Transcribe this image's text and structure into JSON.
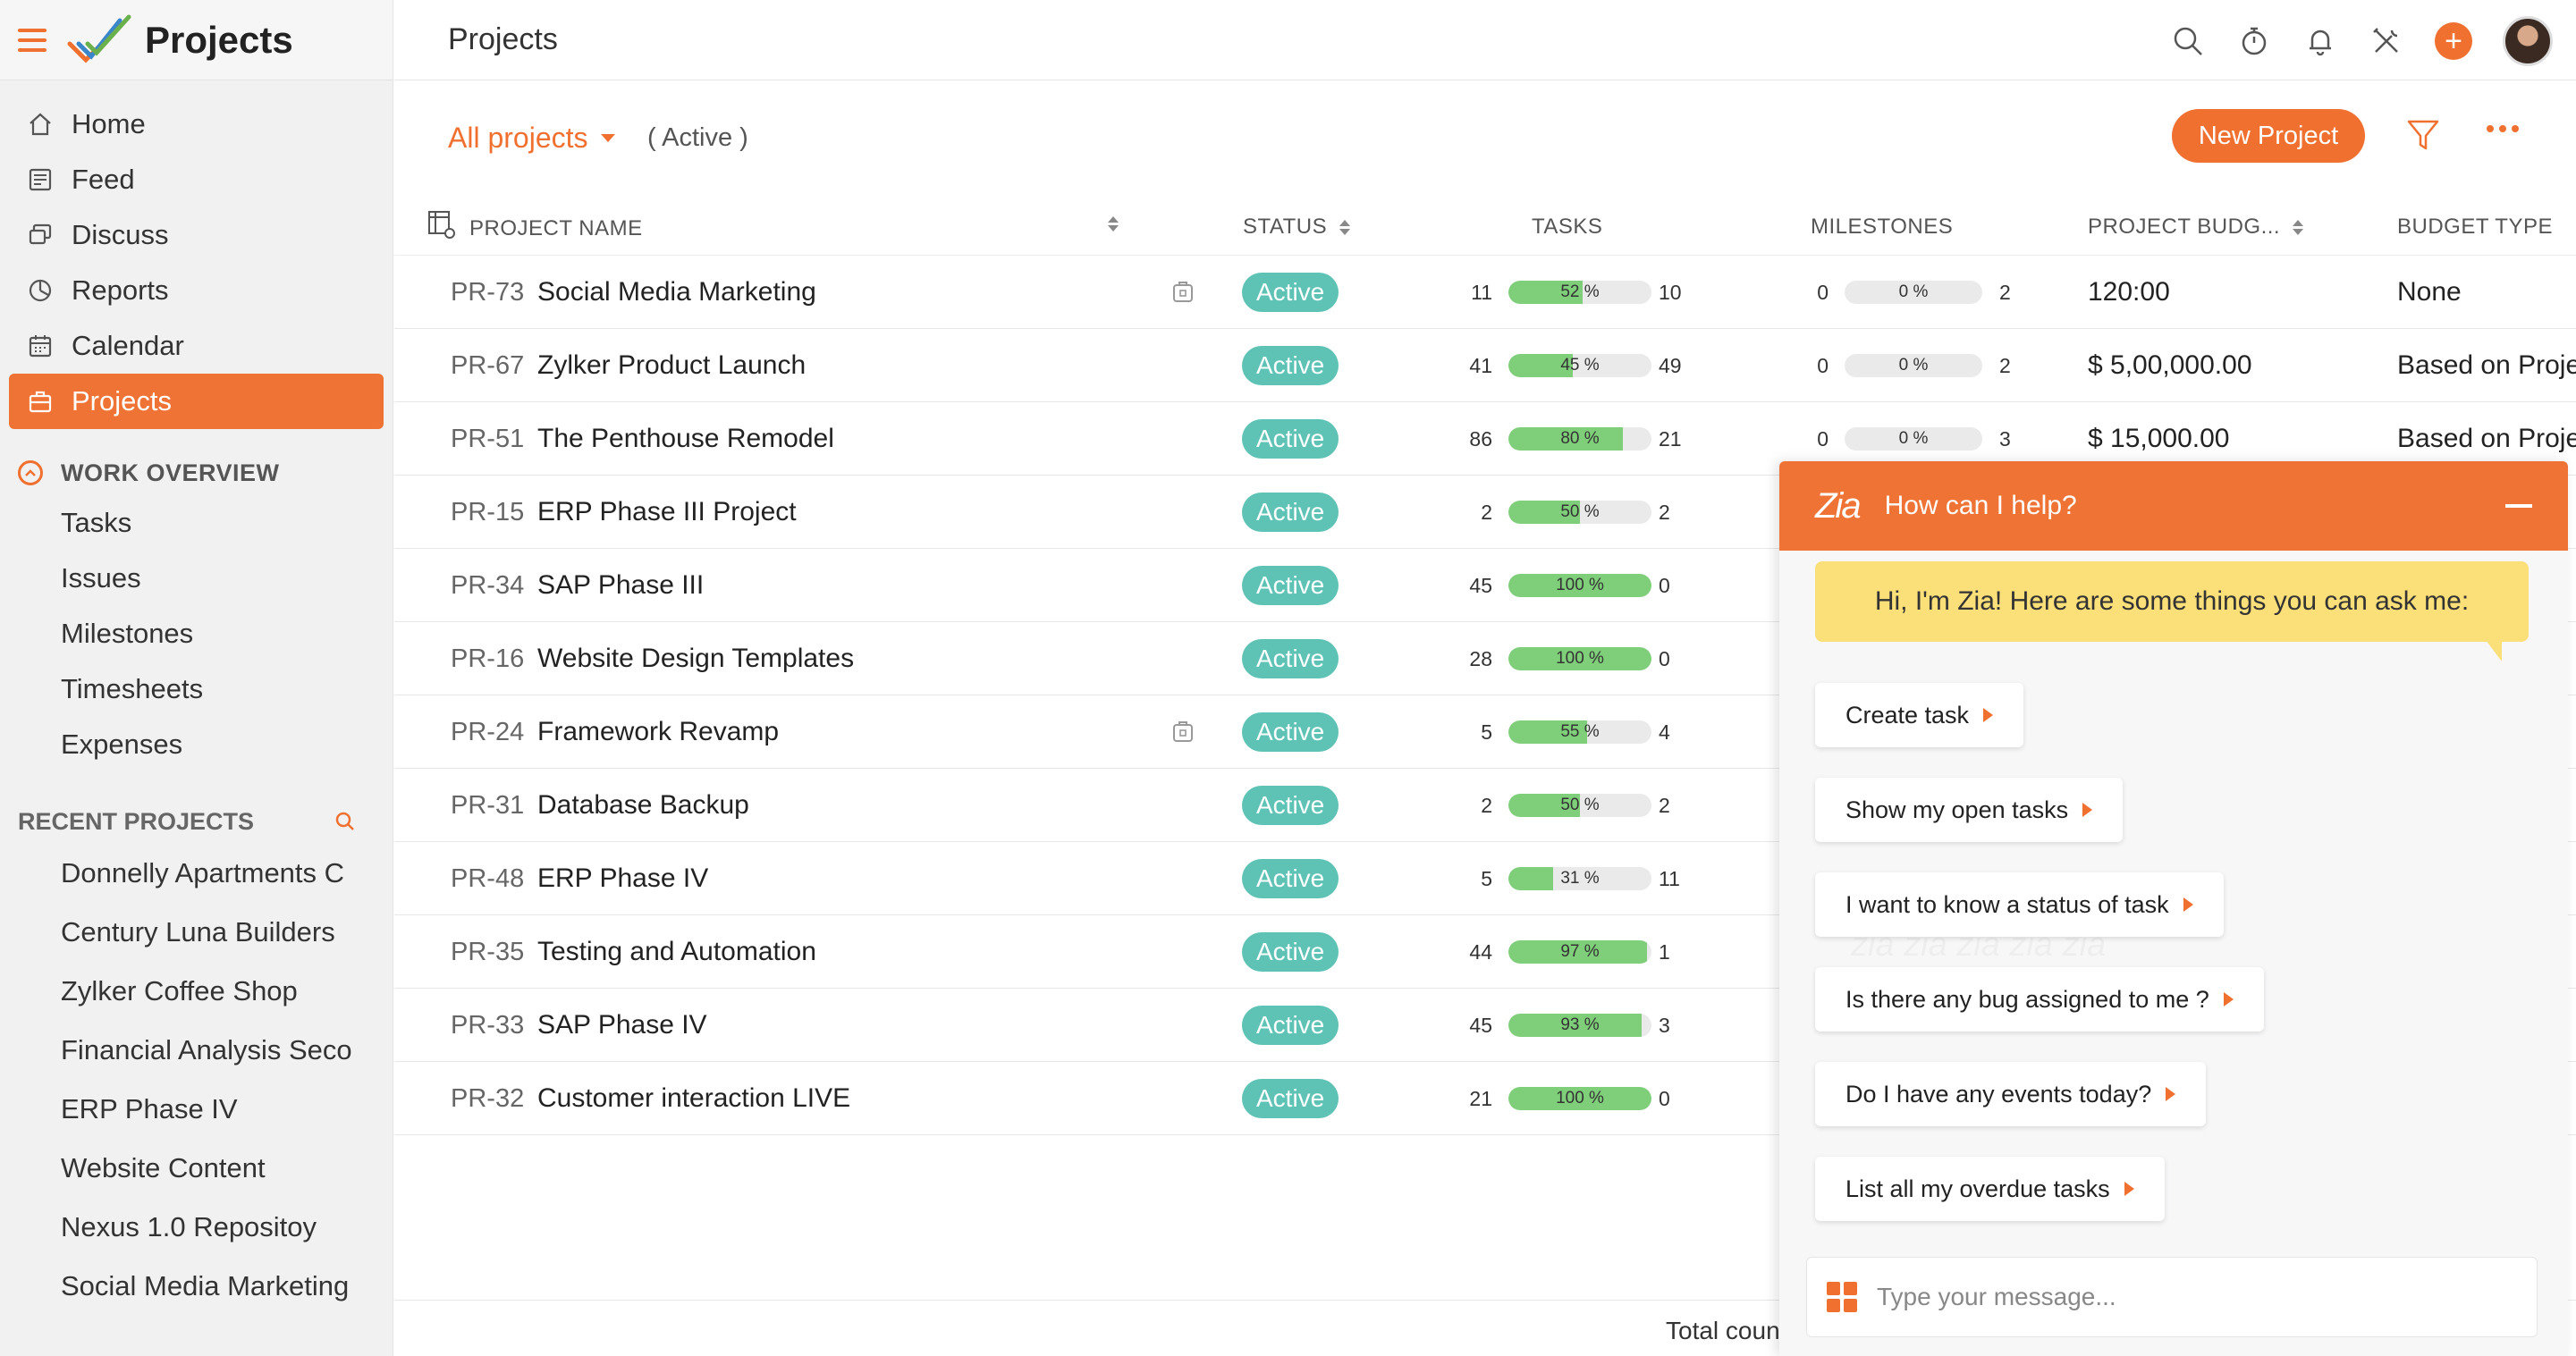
{
  "app": {
    "title": "Projects"
  },
  "sidebar": {
    "nav": [
      {
        "label": "Home",
        "icon": "home-icon"
      },
      {
        "label": "Feed",
        "icon": "feed-icon"
      },
      {
        "label": "Discuss",
        "icon": "discuss-icon"
      },
      {
        "label": "Reports",
        "icon": "reports-icon"
      },
      {
        "label": "Calendar",
        "icon": "calendar-icon"
      },
      {
        "label": "Projects",
        "icon": "projects-icon",
        "active": true
      }
    ],
    "work_overview": {
      "title": "WORK OVERVIEW",
      "items": [
        "Tasks",
        "Issues",
        "Milestones",
        "Timesheets",
        "Expenses"
      ]
    },
    "recent": {
      "title": "RECENT PROJECTS",
      "items": [
        "Donnelly Apartments C",
        "Century Luna Builders",
        "Zylker Coffee Shop",
        "Financial Analysis Seco",
        "ERP Phase IV",
        "Website Content",
        "Nexus 1.0 Repositoy",
        "Social Media Marketing"
      ]
    }
  },
  "header": {
    "page_title": "Projects"
  },
  "toolbar": {
    "filter_label": "All projects",
    "status_label": "( Active )",
    "new_project_label": "New Project"
  },
  "table": {
    "columns": [
      "PROJECT NAME",
      "STATUS",
      "TASKS",
      "MILESTONES",
      "PROJECT BUDG...",
      "BUDGET TYPE"
    ],
    "rows": [
      {
        "id": "PR-73",
        "name": "Social Media Marketing",
        "status": "Active",
        "tasks_closed": "11",
        "tasks_pct": 52,
        "tasks_pct_label": "52 %",
        "tasks_open": "10",
        "ms_closed": "0",
        "ms_pct_label": "0 %",
        "ms_open": "2",
        "budget": "120:00",
        "budget_type": "None",
        "has_file": true
      },
      {
        "id": "PR-67",
        "name": "Zylker Product Launch",
        "status": "Active",
        "tasks_closed": "41",
        "tasks_pct": 45,
        "tasks_pct_label": "45 %",
        "tasks_open": "49",
        "ms_closed": "0",
        "ms_pct_label": "0 %",
        "ms_open": "2",
        "budget": "$ 5,00,000.00",
        "budget_type": "Based on Proje"
      },
      {
        "id": "PR-51",
        "name": "The Penthouse Remodel",
        "status": "Active",
        "tasks_closed": "86",
        "tasks_pct": 80,
        "tasks_pct_label": "80 %",
        "tasks_open": "21",
        "ms_closed": "0",
        "ms_pct_label": "0 %",
        "ms_open": "3",
        "budget": "$ 15,000.00",
        "budget_type": "Based on Proje"
      },
      {
        "id": "PR-15",
        "name": "ERP Phase III Project",
        "status": "Active",
        "tasks_closed": "2",
        "tasks_pct": 50,
        "tasks_pct_label": "50 %",
        "tasks_open": "2"
      },
      {
        "id": "PR-34",
        "name": "SAP Phase III",
        "status": "Active",
        "tasks_closed": "45",
        "tasks_pct": 100,
        "tasks_pct_label": "100 %",
        "tasks_open": "0"
      },
      {
        "id": "PR-16",
        "name": "Website Design Templates",
        "status": "Active",
        "tasks_closed": "28",
        "tasks_pct": 100,
        "tasks_pct_label": "100 %",
        "tasks_open": "0"
      },
      {
        "id": "PR-24",
        "name": "Framework Revamp",
        "status": "Active",
        "tasks_closed": "5",
        "tasks_pct": 55,
        "tasks_pct_label": "55 %",
        "tasks_open": "4",
        "has_file": true
      },
      {
        "id": "PR-31",
        "name": "Database Backup",
        "status": "Active",
        "tasks_closed": "2",
        "tasks_pct": 50,
        "tasks_pct_label": "50 %",
        "tasks_open": "2"
      },
      {
        "id": "PR-48",
        "name": "ERP Phase IV",
        "status": "Active",
        "tasks_closed": "5",
        "tasks_pct": 31,
        "tasks_pct_label": "31 %",
        "tasks_open": "11"
      },
      {
        "id": "PR-35",
        "name": "Testing and Automation",
        "status": "Active",
        "tasks_closed": "44",
        "tasks_pct": 97,
        "tasks_pct_label": "97 %",
        "tasks_open": "1"
      },
      {
        "id": "PR-33",
        "name": "SAP Phase IV",
        "status": "Active",
        "tasks_closed": "45",
        "tasks_pct": 93,
        "tasks_pct_label": "93 %",
        "tasks_open": "3"
      },
      {
        "id": "PR-32",
        "name": "Customer interaction LIVE",
        "status": "Active",
        "tasks_closed": "21",
        "tasks_pct": 100,
        "tasks_pct_label": "100 %",
        "tasks_open": "0"
      }
    ],
    "total_label": "Total coun"
  },
  "zia": {
    "title": "How can I help?",
    "greeting": "Hi, I'm Zia! Here are some things you can ask me:",
    "suggestions": [
      "Create task",
      "Show my open tasks",
      "I want to know a status of task",
      "Is there any bug assigned to me ?",
      "Do I have any events today?",
      "List all my overdue tasks"
    ],
    "input_placeholder": "Type your message..."
  },
  "colors": {
    "accent": "#f07030",
    "status_active": "#5ec2b5",
    "progress": "#7fcf7a",
    "zia_bubble": "#fbe07a"
  }
}
